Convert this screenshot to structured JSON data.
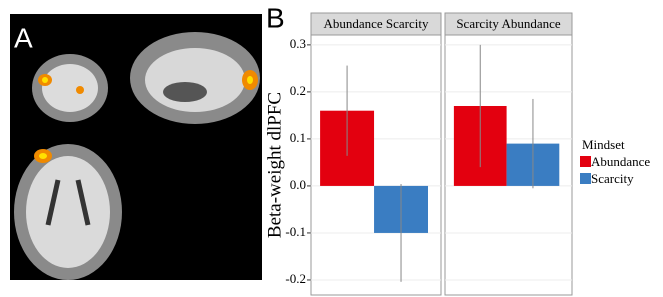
{
  "panel_a": {
    "label": "A"
  },
  "chart_data": {
    "type": "bar",
    "panel_label": "B",
    "ylabel": "Beta-weight dlPFC",
    "categories": [
      "Abundance Scarcity",
      "Scarcity Abundance"
    ],
    "legend_title": "Mindset",
    "series": [
      {
        "name": "Abundance",
        "color": "#e3000f",
        "values": [
          0.16,
          0.17
        ],
        "errors": [
          0.096,
          0.13
        ]
      },
      {
        "name": "Scarcity",
        "color": "#3a7dc2",
        "values": [
          -0.1,
          0.09
        ],
        "errors": [
          0.104,
          0.095
        ]
      }
    ],
    "ylim": [
      -0.232,
      0.321
    ],
    "yticks": [
      -0.2,
      -0.1,
      {
        "value": 0,
        "label": "0.0"
      },
      0.1,
      0.2,
      0.3
    ],
    "grid": true
  }
}
